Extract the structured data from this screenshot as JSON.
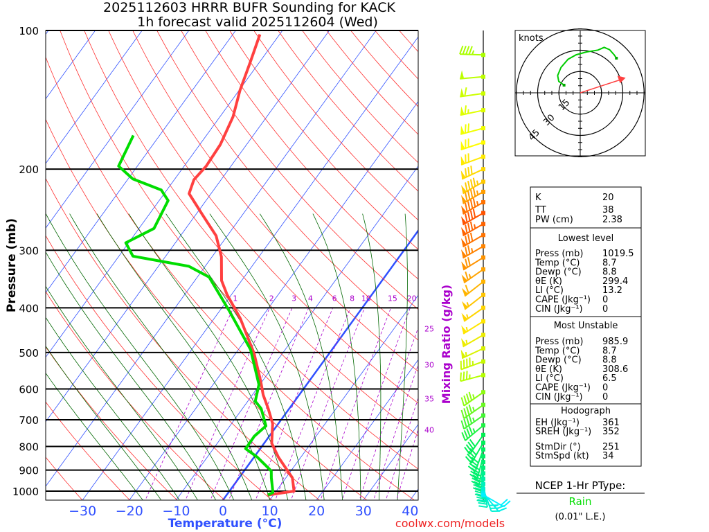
{
  "title": {
    "line1": "2025112603 HRRR BUFR Sounding for KACK",
    "line2": "1h forecast valid 2025112604 (Wed)"
  },
  "footer": "coolwx.com/models",
  "colors": {
    "temperature": "#ff4040",
    "dewpoint": "#00dd00",
    "isotherm": "#3050ff",
    "dry_adiabat": "#ff3030",
    "moist_adiabat": "#006600",
    "mixing_ratio": "#aa00cc",
    "axis_label": "#3050ff",
    "mixing_label": "#aa00cc"
  },
  "chart_data": {
    "type": "skew-t",
    "title": "2025112603 HRRR BUFR Sounding for KACK / 1h forecast valid 2025112604 (Wed)",
    "xlabel": "Temperature (°C)",
    "ylabel": "Pressure (mb)",
    "y2label": "Mixing Ratio (g/kg)",
    "pressure_ticks": [
      100,
      200,
      300,
      400,
      500,
      600,
      700,
      800,
      900,
      1000
    ],
    "pressure_tick_labels": [
      "100",
      "200",
      "300",
      "400",
      "500",
      "600",
      "700",
      "800",
      "900",
      "1000"
    ],
    "temperature_ticks": [
      -30,
      -20,
      -10,
      0,
      10,
      20,
      30,
      40
    ],
    "temperature_tick_labels": [
      "−30",
      "−20",
      "−10",
      "0",
      "10",
      "20",
      "30",
      "40"
    ],
    "mixing_ratios": [
      1,
      2,
      3,
      4,
      6,
      8,
      10,
      15,
      20,
      25,
      30,
      35,
      40
    ],
    "mixing_ratio_labels": [
      "1",
      "2",
      "3",
      "4",
      "6",
      "8",
      "10",
      "15",
      "20",
      "25",
      "30",
      "35",
      "40"
    ],
    "temperature_profile": [
      [
        1019.5,
        8.7
      ],
      [
        1000,
        13.8
      ],
      [
        936,
        11.4
      ],
      [
        844,
        5.2
      ],
      [
        787,
        1.6
      ],
      [
        714,
        -1.2
      ],
      [
        662,
        -4.5
      ],
      [
        618,
        -7.7
      ],
      [
        578,
        -10.3
      ],
      [
        502,
        -16.1
      ],
      [
        422,
        -24.4
      ],
      [
        374,
        -31
      ],
      [
        349,
        -34.3
      ],
      [
        310,
        -38
      ],
      [
        279,
        -42.4
      ],
      [
        251,
        -48.6
      ],
      [
        226,
        -54.7
      ],
      [
        211,
        -55.8
      ],
      [
        197,
        -55.3
      ],
      [
        177,
        -55.6
      ],
      [
        154,
        -57.2
      ],
      [
        135,
        -59.8
      ],
      [
        117,
        -62
      ],
      [
        102,
        -64.2
      ]
    ],
    "dewpoint_profile": [
      [
        1019.5,
        8.8
      ],
      [
        1007,
        9.5
      ],
      [
        936,
        6.9
      ],
      [
        904,
        5.8
      ],
      [
        844,
        0.7
      ],
      [
        809,
        -3.1
      ],
      [
        760,
        -3.2
      ],
      [
        722,
        -2.3
      ],
      [
        662,
        -6
      ],
      [
        638,
        -8.4
      ],
      [
        587,
        -10.2
      ],
      [
        493,
        -17.4
      ],
      [
        408,
        -27.7
      ],
      [
        343,
        -37.5
      ],
      [
        325,
        -43.5
      ],
      [
        309,
        -57
      ],
      [
        289,
        -60.6
      ],
      [
        269,
        -56.8
      ],
      [
        234,
        -58.1
      ],
      [
        222,
        -61.2
      ],
      [
        210,
        -69
      ],
      [
        197,
        -74
      ],
      [
        169,
        -75.6
      ]
    ],
    "winds": [
      {
        "p": 113,
        "dir": 272,
        "spd": 45
      },
      {
        "p": 126,
        "dir": 265,
        "spd": 50
      },
      {
        "p": 137,
        "dir": 262,
        "spd": 60
      },
      {
        "p": 149,
        "dir": 258,
        "spd": 65
      },
      {
        "p": 163,
        "dir": 255,
        "spd": 70
      },
      {
        "p": 175,
        "dir": 252,
        "spd": 70
      },
      {
        "p": 188,
        "dir": 250,
        "spd": 70
      },
      {
        "p": 200,
        "dir": 245,
        "spd": 80
      },
      {
        "p": 213,
        "dir": 240,
        "spd": 95
      },
      {
        "p": 224,
        "dir": 240,
        "spd": 95
      },
      {
        "p": 236,
        "dir": 240,
        "spd": 95
      },
      {
        "p": 249,
        "dir": 240,
        "spd": 90
      },
      {
        "p": 263,
        "dir": 240,
        "spd": 85
      },
      {
        "p": 278,
        "dir": 240,
        "spd": 80
      },
      {
        "p": 294,
        "dir": 240,
        "spd": 75
      },
      {
        "p": 311,
        "dir": 238,
        "spd": 70
      },
      {
        "p": 330,
        "dir": 235,
        "spd": 65
      },
      {
        "p": 351,
        "dir": 232,
        "spd": 60
      },
      {
        "p": 375,
        "dir": 232,
        "spd": 55
      },
      {
        "p": 400,
        "dir": 235,
        "spd": 55
      },
      {
        "p": 428,
        "dir": 238,
        "spd": 55
      },
      {
        "p": 458,
        "dir": 240,
        "spd": 55
      },
      {
        "p": 490,
        "dir": 245,
        "spd": 55
      },
      {
        "p": 523,
        "dir": 250,
        "spd": 45
      },
      {
        "p": 560,
        "dir": 255,
        "spd": 35
      },
      {
        "p": 610,
        "dir": 235,
        "spd": 45
      },
      {
        "p": 650,
        "dir": 235,
        "spd": 45
      },
      {
        "p": 685,
        "dir": 235,
        "spd": 45
      },
      {
        "p": 720,
        "dir": 230,
        "spd": 45
      },
      {
        "p": 755,
        "dir": 215,
        "spd": 40
      },
      {
        "p": 785,
        "dir": 210,
        "spd": 40
      },
      {
        "p": 812,
        "dir": 200,
        "spd": 40
      },
      {
        "p": 840,
        "dir": 195,
        "spd": 40
      },
      {
        "p": 865,
        "dir": 190,
        "spd": 40
      },
      {
        "p": 890,
        "dir": 185,
        "spd": 40
      },
      {
        "p": 915,
        "dir": 180,
        "spd": 40
      },
      {
        "p": 940,
        "dir": 175,
        "spd": 35
      },
      {
        "p": 965,
        "dir": 170,
        "spd": 35
      },
      {
        "p": 990,
        "dir": 160,
        "spd": 30
      },
      {
        "p": 1010,
        "dir": 140,
        "spd": 25
      },
      {
        "p": 1019,
        "dir": 120,
        "spd": 20
      }
    ]
  },
  "hodograph": {
    "units_label": "knots",
    "ring_labels": [
      "15",
      "30",
      "45"
    ],
    "rings_kt": [
      15,
      30,
      45
    ],
    "trace_uv": [
      [
        -11.4,
        5.4
      ],
      [
        -15.1,
        8.1
      ],
      [
        -15.9,
        12.2
      ],
      [
        -13.5,
        17.9
      ],
      [
        -8.6,
        23.6
      ],
      [
        -2.9,
        26.8
      ],
      [
        4.4,
        28.8
      ],
      [
        12.5,
        30.1
      ],
      [
        16.9,
        32
      ],
      [
        20.7,
        30.4
      ],
      [
        23.9,
        26.8
      ],
      [
        25.5,
        24.4
      ]
    ],
    "storm_motion_uv": [
      32,
      10.6
    ]
  },
  "indices": {
    "top": [
      {
        "label": "K",
        "value": "20"
      },
      {
        "label": "TT",
        "value": "38"
      },
      {
        "label": "PW (cm)",
        "value": "2.38"
      }
    ],
    "lowest": {
      "heading": "Lowest level",
      "rows": [
        {
          "label": "Press (mb)",
          "value": "1019.5"
        },
        {
          "label": "Temp (°C)",
          "value": "8.7"
        },
        {
          "label": "Dewp (°C)",
          "value": "8.8"
        },
        {
          "label": "θE (K)",
          "value": "299.4"
        },
        {
          "label": "LI (°C)",
          "value": "13.2"
        },
        {
          "label": "CAPE (Jkg⁻¹)",
          "value": "0"
        },
        {
          "label": "CIN (Jkg⁻¹)",
          "value": "0"
        }
      ]
    },
    "unstable": {
      "heading": "Most Unstable",
      "rows": [
        {
          "label": "Press (mb)",
          "value": "985.9"
        },
        {
          "label": "Temp (°C)",
          "value": "8.7"
        },
        {
          "label": "Dewp (°C)",
          "value": "8.8"
        },
        {
          "label": "θE (K)",
          "value": "308.6"
        },
        {
          "label": "LI (°C)",
          "value": "6.5"
        },
        {
          "label": "CAPE (Jkg⁻¹)",
          "value": "0"
        },
        {
          "label": "CIN (Jkg⁻¹)",
          "value": "0"
        }
      ]
    },
    "hodo": {
      "heading": "Hodograph",
      "rows": [
        {
          "label": "EH (Jkg⁻¹)",
          "value": "361"
        },
        {
          "label": "SREH (Jkg⁻¹)",
          "value": "352"
        },
        {
          "label": "StmDir (°)",
          "value": "251"
        },
        {
          "label": "StmSpd (kt)",
          "value": "34"
        }
      ]
    }
  },
  "ptype": {
    "heading": "NCEP 1-Hr PType:",
    "value": "Rain",
    "note": "(0.01\" L.E.)",
    "value_color": "#00dd00"
  }
}
